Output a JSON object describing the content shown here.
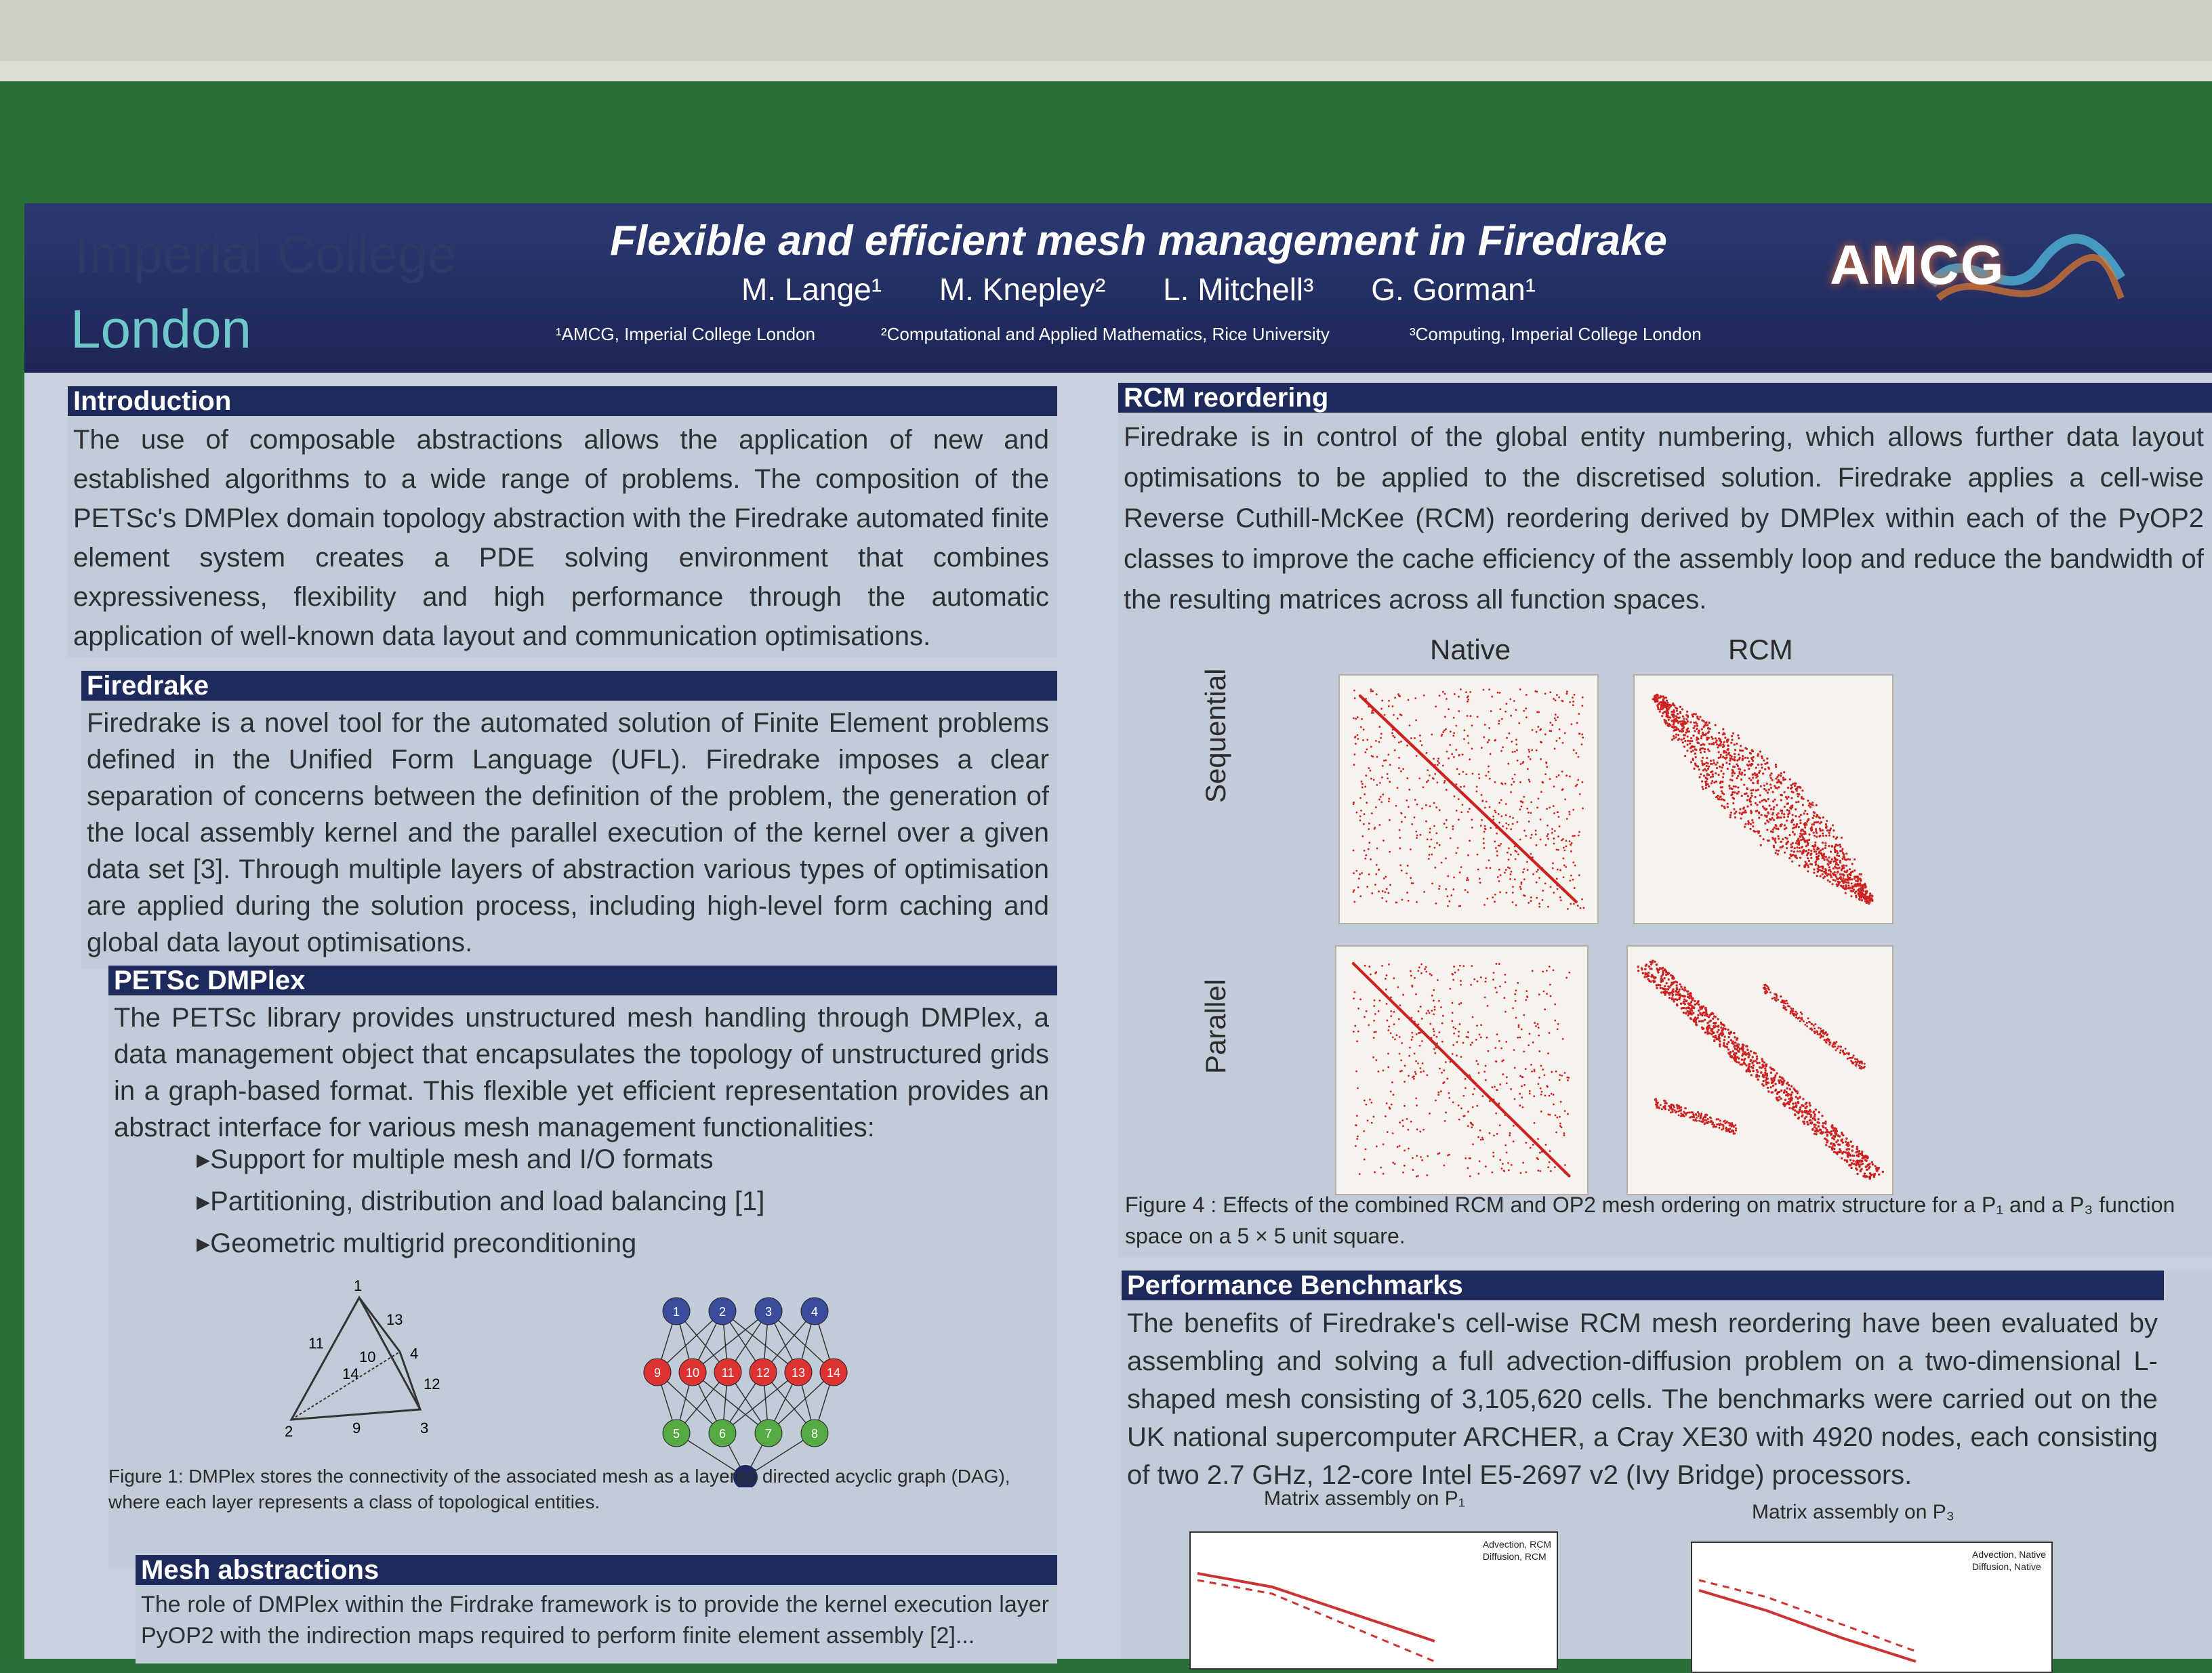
{
  "header": {
    "logo_top": "Imperial College",
    "logo_bottom": "London",
    "title": "Flexible and efficient mesh management in Firedrake",
    "authors": [
      "M. Lange¹",
      "M. Knepley²",
      "L. Mitchell³",
      "G. Gorman¹"
    ],
    "affiliations": [
      "¹AMCG, Imperial College London",
      "²Computational and Applied Mathematics, Rice University",
      "³Computing, Imperial College London"
    ],
    "group_logo": "AMCG"
  },
  "intro": {
    "heading": "Introduction",
    "text": "The use of composable abstractions allows the application of new and established algorithms to a wide range of problems. The composition of the PETSc's DMPlex domain topology abstraction with the Firedrake automated finite element system creates a PDE solving environment that combines expressiveness, flexibility and high performance through the automatic application of well-known data layout and communication optimisations."
  },
  "firedrake": {
    "heading": "Firedrake",
    "text": "Firedrake is a novel tool for the automated solution of Finite Element problems defined in the Unified Form Language (UFL). Firedrake imposes a clear separation of concerns between the definition of the problem, the generation of the local assembly kernel and the parallel execution of the kernel over a given data set [3]. Through multiple layers of abstraction various types of optimisation are applied during the solution process, including high-level form caching and global data layout optimisations."
  },
  "dmplex": {
    "heading": "PETSc DMPlex",
    "text": "The PETSc library provides unstructured mesh handling through DMPlex, a data management object that encapsulates the topology of unstructured grids in a graph-based format. This flexible yet efficient representation provides an abstract interface for various mesh management functionalities:",
    "bullets": [
      "Support for multiple mesh and I/O formats",
      "Partitioning, distribution and load balancing [1]",
      "Geometric multigrid preconditioning"
    ],
    "tet_labels": [
      "1",
      "13",
      "11",
      "4",
      "10",
      "14",
      "12",
      "2",
      "9",
      "3"
    ],
    "dag_top": [
      "1",
      "2",
      "3",
      "4"
    ],
    "dag_mid": [
      "9",
      "10",
      "11",
      "12",
      "13",
      "14"
    ],
    "dag_low": [
      "5",
      "6",
      "7",
      "8"
    ],
    "caption": "Figure 1: DMPlex stores the connectivity of the associated mesh as a layered directed acyclic graph (DAG), where each layer represents a class of topological entities."
  },
  "mesh": {
    "heading": "Mesh abstractions",
    "text": "The role of DMPlex within the Firdrake framework is to provide the kernel execution layer PyOP2 with the indirection maps required to perform finite element assembly [2]..."
  },
  "rcm": {
    "heading": "RCM reordering",
    "text": "Firedrake is in control of the global entity numbering, which allows further data layout optimisations to be applied to the discretised solution. Firedrake applies a cell-wise Reverse Cuthill-McKee (RCM) reordering derived by DMPlex within each of the PyOP2 classes to improve the cache efficiency of the assembly loop and reduce the bandwidth of the resulting matrices across all function spaces.",
    "col_labels": [
      "Native",
      "RCM"
    ],
    "row_labels": [
      "Sequential",
      "Parallel"
    ],
    "caption": "Figure 4 : Effects of the combined RCM and OP2 mesh ordering on matrix structure for a P₁ and a P₃ function space on a 5 × 5 unit square."
  },
  "perf": {
    "heading": "Performance Benchmarks",
    "text": "The benefits of Firedrake's cell-wise RCM mesh reordering have been evaluated by assembling and solving a full advection-diffusion problem on a two-dimensional L-shaped mesh consisting of 3,105,620 cells. The benchmarks were carried out on the UK national supercomputer ARCHER, a Cray XE30 with 4920 nodes, each consisting of two 2.7 GHz, 12-core Intel E5-2697 v2 (Ivy Bridge) processors.",
    "chart1_title": "Matrix assembly on P₁",
    "chart2_title": "Matrix assembly on P₃",
    "legend": [
      "Advection, RCM",
      "Diffusion, RCM",
      "Advection, Native",
      "Diffusion, Native"
    ]
  },
  "colors": {
    "banner": "#1e2a5c",
    "board": "#2c7038",
    "matrix_dots": "#cc2222",
    "dag_blue": "#3a4c9a",
    "dag_red": "#dd3333",
    "dag_green": "#55aa44"
  }
}
